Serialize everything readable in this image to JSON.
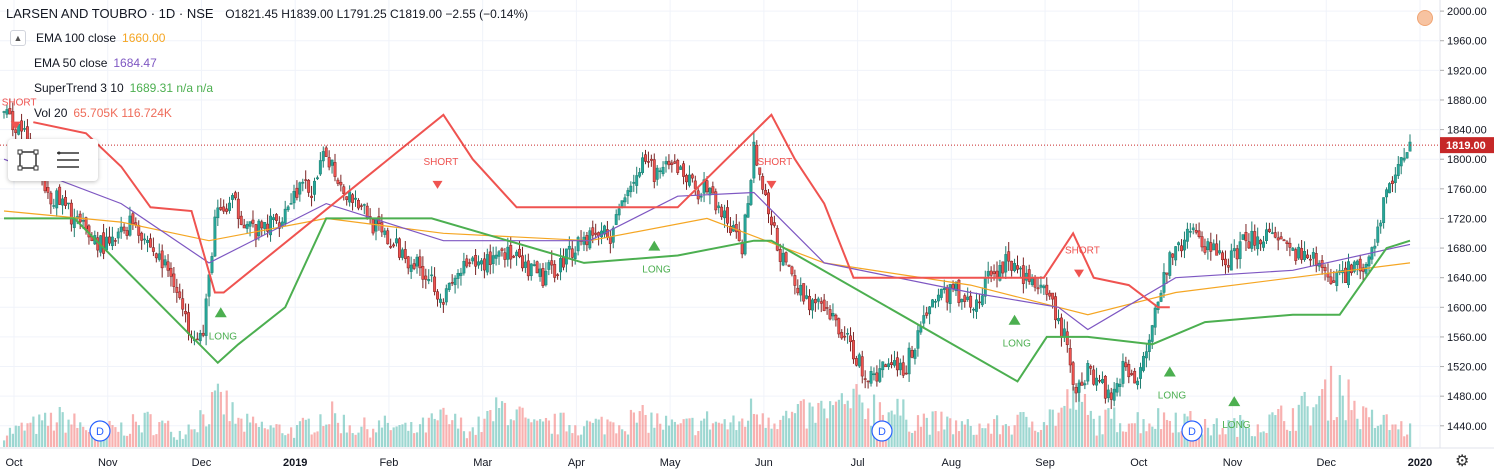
{
  "header": {
    "symbol": "LARSEN AND TOUBRO · 1D · NSE",
    "ohlc": "O1821.45  H1839.00  L1791.25  C1819.00  −2.55 (−0.14%)",
    "collapse_icon": "chevron-up-icon"
  },
  "indicators": [
    {
      "label": "EMA 100 close",
      "value": "1660.00",
      "color": "#f5a623"
    },
    {
      "label": "EMA 50 close",
      "value": "1684.47",
      "color": "#7e57c2"
    },
    {
      "label": "SuperTrend 3 10",
      "value": "1689.31  n/a  n/a",
      "color": "#4caf50",
      "value_color_na": "#ef5350"
    },
    {
      "label": "Vol 20",
      "value": "65.705K  116.724K",
      "color": "#ef6c5a"
    }
  ],
  "toolbar": {
    "icons": [
      "rectangle-select-icon",
      "menu-lines-icon"
    ]
  },
  "colors": {
    "up": "#26a69a",
    "down": "#ef5350",
    "ema100": "#f5a623",
    "ema50": "#7e57c2",
    "st_up": "#4caf50",
    "st_down": "#ef5350",
    "price_line": "#c62828"
  },
  "chart_data": {
    "type": "candlestick",
    "title": "LARSEN AND TOUBRO · 1D · NSE",
    "x_tick_labels": [
      "Oct",
      "Nov",
      "Dec",
      "2019",
      "Feb",
      "Mar",
      "Apr",
      "May",
      "Jun",
      "Jul",
      "Aug",
      "Sep",
      "Oct",
      "Nov",
      "Dec",
      "2020"
    ],
    "y_tick_labels": [
      "2000.00",
      "1960.00",
      "1920.00",
      "1880.00",
      "1840.00",
      "1800.00",
      "1760.00",
      "1720.00",
      "1680.00",
      "1640.00",
      "1600.00",
      "1560.00",
      "1520.00",
      "1480.00",
      "1440.00"
    ],
    "ylim": [
      1410,
      2015
    ],
    "last_price": "1819.00",
    "events": [
      {
        "label": "SHORT",
        "color": "#ef5350"
      },
      {
        "label": "LONG",
        "color": "#4caf50"
      },
      {
        "label": "SHORT",
        "color": "#ef5350"
      },
      {
        "label": "LONG",
        "color": "#4caf50"
      },
      {
        "label": "SHORT",
        "color": "#ef5350"
      },
      {
        "label": "SHORT",
        "color": "#ef5350"
      },
      {
        "label": "LONG",
        "color": "#4caf50"
      },
      {
        "label": "LONG",
        "color": "#4caf50"
      },
      {
        "label": "LONG",
        "color": "#4caf50"
      }
    ],
    "dividend_markers": [
      "D",
      "D",
      "D"
    ],
    "close_trend": [
      [
        0,
        1860
      ],
      [
        6,
        1840
      ],
      [
        14,
        1760
      ],
      [
        22,
        1730
      ],
      [
        28,
        1700
      ],
      [
        36,
        1680
      ],
      [
        44,
        1720
      ],
      [
        52,
        1670
      ],
      [
        58,
        1640
      ],
      [
        62,
        1580
      ],
      [
        68,
        1560
      ],
      [
        72,
        1720
      ],
      [
        78,
        1740
      ],
      [
        86,
        1700
      ],
      [
        94,
        1720
      ],
      [
        100,
        1760
      ],
      [
        106,
        1760
      ],
      [
        110,
        1810
      ],
      [
        116,
        1760
      ],
      [
        122,
        1740
      ],
      [
        128,
        1700
      ],
      [
        134,
        1680
      ],
      [
        140,
        1660
      ],
      [
        146,
        1640
      ],
      [
        150,
        1610
      ],
      [
        156,
        1650
      ],
      [
        164,
        1660
      ],
      [
        170,
        1680
      ],
      [
        178,
        1650
      ],
      [
        184,
        1640
      ],
      [
        190,
        1660
      ],
      [
        196,
        1690
      ],
      [
        202,
        1700
      ],
      [
        208,
        1700
      ],
      [
        212,
        1760
      ],
      [
        218,
        1790
      ],
      [
        224,
        1780
      ],
      [
        230,
        1790
      ],
      [
        236,
        1760
      ],
      [
        240,
        1760
      ],
      [
        246,
        1720
      ],
      [
        252,
        1680
      ],
      [
        256,
        1820
      ],
      [
        260,
        1740
      ],
      [
        266,
        1660
      ],
      [
        272,
        1620
      ],
      [
        278,
        1600
      ],
      [
        284,
        1580
      ],
      [
        290,
        1540
      ],
      [
        296,
        1500
      ],
      [
        302,
        1530
      ],
      [
        308,
        1520
      ],
      [
        314,
        1590
      ],
      [
        320,
        1620
      ],
      [
        326,
        1620
      ],
      [
        332,
        1600
      ],
      [
        336,
        1640
      ],
      [
        342,
        1660
      ],
      [
        346,
        1650
      ],
      [
        350,
        1640
      ],
      [
        354,
        1620
      ],
      [
        358,
        1600
      ],
      [
        362,
        1560
      ],
      [
        366,
        1480
      ],
      [
        370,
        1520
      ],
      [
        374,
        1500
      ],
      [
        378,
        1480
      ],
      [
        382,
        1520
      ],
      [
        386,
        1500
      ],
      [
        390,
        1550
      ],
      [
        394,
        1620
      ],
      [
        400,
        1680
      ],
      [
        406,
        1700
      ],
      [
        412,
        1680
      ],
      [
        418,
        1660
      ],
      [
        424,
        1690
      ],
      [
        430,
        1700
      ],
      [
        436,
        1680
      ],
      [
        442,
        1670
      ],
      [
        448,
        1660
      ],
      [
        454,
        1640
      ],
      [
        460,
        1650
      ],
      [
        466,
        1660
      ],
      [
        472,
        1760
      ],
      [
        476,
        1780
      ],
      [
        480,
        1819
      ]
    ],
    "ema100": [
      [
        0,
        1730
      ],
      [
        40,
        1715
      ],
      [
        70,
        1690
      ],
      [
        110,
        1720
      ],
      [
        150,
        1700
      ],
      [
        200,
        1690
      ],
      [
        240,
        1720
      ],
      [
        280,
        1660
      ],
      [
        330,
        1630
      ],
      [
        370,
        1590
      ],
      [
        400,
        1620
      ],
      [
        440,
        1640
      ],
      [
        480,
        1660
      ]
    ],
    "ema50": [
      [
        0,
        1800
      ],
      [
        40,
        1740
      ],
      [
        70,
        1660
      ],
      [
        110,
        1740
      ],
      [
        150,
        1690
      ],
      [
        200,
        1690
      ],
      [
        230,
        1750
      ],
      [
        256,
        1755
      ],
      [
        280,
        1660
      ],
      [
        330,
        1620
      ],
      [
        360,
        1600
      ],
      [
        370,
        1570
      ],
      [
        400,
        1640
      ],
      [
        440,
        1650
      ],
      [
        480,
        1685
      ]
    ],
    "supertrend_long": [
      [
        0,
        1720
      ],
      [
        24,
        1720
      ],
      [
        73,
        1525
      ],
      [
        80,
        1550
      ],
      [
        96,
        1600
      ],
      [
        110,
        1720
      ],
      [
        146,
        1720
      ],
      [
        198,
        1660
      ],
      [
        230,
        1670
      ],
      [
        256,
        1690
      ],
      [
        262,
        1690
      ],
      [
        346,
        1500
      ],
      [
        356,
        1560
      ],
      [
        370,
        1560
      ],
      [
        392,
        1550
      ],
      [
        410,
        1580
      ],
      [
        440,
        1590
      ],
      [
        456,
        1590
      ],
      [
        472,
        1680
      ],
      [
        480,
        1690
      ]
    ],
    "supertrend_short": [
      [
        10,
        1850
      ],
      [
        28,
        1835
      ],
      [
        40,
        1790
      ],
      [
        50,
        1735
      ],
      [
        64,
        1730
      ],
      [
        72,
        1620
      ],
      [
        75,
        1620
      ],
      [
        150,
        1860
      ],
      [
        160,
        1800
      ],
      [
        175,
        1735
      ],
      [
        230,
        1735
      ],
      [
        262,
        1860
      ],
      [
        270,
        1800
      ],
      [
        280,
        1740
      ],
      [
        290,
        1640
      ],
      [
        355,
        1640
      ],
      [
        365,
        1700
      ],
      [
        372,
        1640
      ],
      [
        384,
        1630
      ],
      [
        394,
        1600
      ],
      [
        398,
        1600
      ]
    ],
    "volume": [
      [
        0,
        30
      ],
      [
        10,
        45
      ],
      [
        20,
        60
      ],
      [
        30,
        35
      ],
      [
        40,
        40
      ],
      [
        50,
        55
      ],
      [
        60,
        30
      ],
      [
        70,
        80
      ],
      [
        75,
        95
      ],
      [
        80,
        50
      ],
      [
        90,
        40
      ],
      [
        100,
        35
      ],
      [
        110,
        70
      ],
      [
        120,
        40
      ],
      [
        130,
        45
      ],
      [
        140,
        35
      ],
      [
        150,
        60
      ],
      [
        160,
        35
      ],
      [
        172,
        90
      ],
      [
        180,
        40
      ],
      [
        190,
        50
      ],
      [
        200,
        45
      ],
      [
        210,
        55
      ],
      [
        220,
        60
      ],
      [
        230,
        40
      ],
      [
        240,
        55
      ],
      [
        250,
        45
      ],
      [
        256,
        80
      ],
      [
        266,
        60
      ],
      [
        276,
        70
      ],
      [
        290,
        90
      ],
      [
        300,
        85
      ],
      [
        310,
        60
      ],
      [
        320,
        50
      ],
      [
        330,
        40
      ],
      [
        340,
        45
      ],
      [
        350,
        55
      ],
      [
        360,
        70
      ],
      [
        366,
        110
      ],
      [
        372,
        50
      ],
      [
        380,
        60
      ],
      [
        390,
        55
      ],
      [
        400,
        65
      ],
      [
        410,
        40
      ],
      [
        420,
        45
      ],
      [
        430,
        50
      ],
      [
        440,
        70
      ],
      [
        448,
        90
      ],
      [
        456,
        130
      ],
      [
        464,
        60
      ],
      [
        472,
        50
      ],
      [
        480,
        35
      ]
    ]
  }
}
